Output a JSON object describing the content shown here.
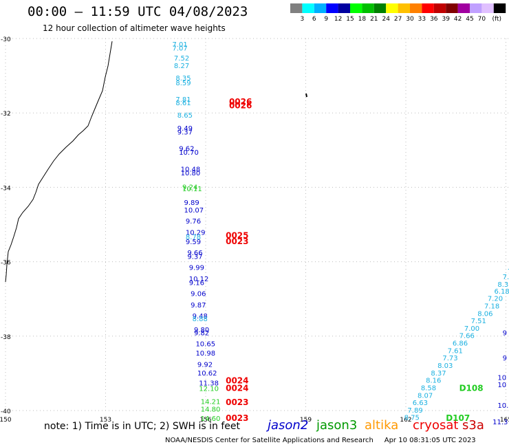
{
  "header": {
    "title": "00:00 – 11:59 UTC 04/08/2023",
    "subtitle": "12 hour collection of altimeter wave heights"
  },
  "colorbar": {
    "unit": "(ft)",
    "labels": [
      "3",
      "6",
      "9",
      "12",
      "15",
      "18",
      "21",
      "24",
      "27",
      "30",
      "33",
      "36",
      "39",
      "42",
      "45",
      "70"
    ],
    "colors": [
      "#808080",
      "#00ffff",
      "#00b0ff",
      "#0000ff",
      "#0000a0",
      "#00ff00",
      "#00c000",
      "#008000",
      "#ffff00",
      "#ffc000",
      "#ff8000",
      "#ff0000",
      "#c00000",
      "#800000",
      "#a000a0",
      "#c0a0ff",
      "#e0c0ff",
      "#000000"
    ]
  },
  "axes": {
    "lat_labels": [
      "-30",
      "-32",
      "-34",
      "-36",
      "-38",
      "-40"
    ],
    "lon_labels": [
      "150",
      "153",
      "156",
      "159",
      "162",
      "165"
    ]
  },
  "observations": [
    {
      "lon": 155.0,
      "lat": -30.15,
      "text": "7.01",
      "sat": "altika"
    },
    {
      "lon": 155.0,
      "lat": -30.25,
      "text": "7.07",
      "sat": "altika"
    },
    {
      "lon": 155.05,
      "lat": -30.52,
      "text": "7.52",
      "sat": "altika"
    },
    {
      "lon": 155.05,
      "lat": -30.72,
      "text": "8.27",
      "sat": "altika"
    },
    {
      "lon": 155.1,
      "lat": -31.05,
      "text": "8.35",
      "sat": "altika"
    },
    {
      "lon": 155.1,
      "lat": -31.18,
      "text": "8.59",
      "sat": "altika"
    },
    {
      "lon": 155.1,
      "lat": -31.63,
      "text": "7.81",
      "sat": "altika"
    },
    {
      "lon": 155.1,
      "lat": -31.72,
      "text": "8.61",
      "sat": "altika"
    },
    {
      "lon": 155.15,
      "lat": -32.05,
      "text": "8.65",
      "sat": "altika"
    },
    {
      "lon": 155.15,
      "lat": -32.4,
      "text": "9.49",
      "sat": "jason2"
    },
    {
      "lon": 155.15,
      "lat": -32.5,
      "text": "9.37",
      "sat": "jason2"
    },
    {
      "lon": 155.2,
      "lat": -32.95,
      "text": "9.62",
      "sat": "jason2"
    },
    {
      "lon": 155.2,
      "lat": -33.05,
      "text": "10.70",
      "sat": "jason2"
    },
    {
      "lon": 155.25,
      "lat": -33.5,
      "text": "10.48",
      "sat": "jason2"
    },
    {
      "lon": 155.25,
      "lat": -33.6,
      "text": "10.80",
      "sat": "jason2"
    },
    {
      "lon": 155.3,
      "lat": -33.98,
      "text": "9.24",
      "sat": "jason3"
    },
    {
      "lon": 155.3,
      "lat": -34.03,
      "text": "10.11",
      "sat": "jason3"
    },
    {
      "lon": 155.35,
      "lat": -34.4,
      "text": "9.89",
      "sat": "jason2"
    },
    {
      "lon": 155.35,
      "lat": -34.6,
      "text": "10.07",
      "sat": "jason2"
    },
    {
      "lon": 155.4,
      "lat": -34.9,
      "text": "9.76",
      "sat": "jason2"
    },
    {
      "lon": 155.4,
      "lat": -35.2,
      "text": "10.29",
      "sat": "jason2"
    },
    {
      "lon": 155.4,
      "lat": -35.32,
      "text": "8.78",
      "sat": "altika"
    },
    {
      "lon": 155.4,
      "lat": -35.45,
      "text": "9.59",
      "sat": "jason2"
    },
    {
      "lon": 155.45,
      "lat": -35.75,
      "text": "9.66",
      "sat": "jason2"
    },
    {
      "lon": 155.45,
      "lat": -35.85,
      "text": "9.37",
      "sat": "jason2"
    },
    {
      "lon": 155.5,
      "lat": -36.15,
      "text": "9.99",
      "sat": "jason2"
    },
    {
      "lon": 155.5,
      "lat": -36.45,
      "text": "10.12",
      "sat": "jason2"
    },
    {
      "lon": 155.5,
      "lat": -36.55,
      "text": "9.16",
      "sat": "jason2"
    },
    {
      "lon": 155.55,
      "lat": -36.85,
      "text": "9.06",
      "sat": "jason2"
    },
    {
      "lon": 155.55,
      "lat": -37.15,
      "text": "9.87",
      "sat": "jason2"
    },
    {
      "lon": 155.6,
      "lat": -37.45,
      "text": "9.48",
      "sat": "jason2"
    },
    {
      "lon": 155.6,
      "lat": -37.52,
      "text": "8.88",
      "sat": "altika"
    },
    {
      "lon": 155.65,
      "lat": -37.82,
      "text": "9.80",
      "sat": "jason2"
    },
    {
      "lon": 155.65,
      "lat": -37.9,
      "text": "9.82",
      "sat": "jason2"
    },
    {
      "lon": 155.7,
      "lat": -38.2,
      "text": "10.65",
      "sat": "jason2"
    },
    {
      "lon": 155.7,
      "lat": -38.45,
      "text": "10.98",
      "sat": "jason2"
    },
    {
      "lon": 155.75,
      "lat": -38.75,
      "text": "9.92",
      "sat": "jason2"
    },
    {
      "lon": 155.75,
      "lat": -38.98,
      "text": "10.62",
      "sat": "jason2"
    },
    {
      "lon": 155.8,
      "lat": -39.25,
      "text": "11.38",
      "sat": "jason2"
    },
    {
      "lon": 155.8,
      "lat": -39.4,
      "text": "12.10",
      "sat": "jason3"
    },
    {
      "lon": 155.85,
      "lat": -39.75,
      "text": "14.21",
      "sat": "jason3"
    },
    {
      "lon": 155.85,
      "lat": -39.95,
      "text": "14.80",
      "sat": "jason3"
    },
    {
      "lon": 155.85,
      "lat": -40.2,
      "text": "14.60",
      "sat": "jason3"
    },
    {
      "lon": 156.7,
      "lat": -31.7,
      "text": "0026",
      "sat": "cryosat"
    },
    {
      "lon": 156.7,
      "lat": -31.8,
      "text": "0026",
      "sat": "cryosat"
    },
    {
      "lon": 156.6,
      "lat": -35.3,
      "text": "0025",
      "sat": "cryosat"
    },
    {
      "lon": 156.6,
      "lat": -35.45,
      "text": "0023",
      "sat": "cryosat"
    },
    {
      "lon": 156.6,
      "lat": -39.2,
      "text": "0024",
      "sat": "cryosat"
    },
    {
      "lon": 156.6,
      "lat": -39.4,
      "text": "0024",
      "sat": "cryosat"
    },
    {
      "lon": 156.6,
      "lat": -39.78,
      "text": "0023",
      "sat": "cryosat"
    },
    {
      "lon": 156.6,
      "lat": -40.2,
      "text": "0023",
      "sat": "cryosat"
    },
    {
      "lon": 165.05,
      "lat": -36.25,
      "text": "7.",
      "sat": "altika"
    },
    {
      "lon": 164.9,
      "lat": -36.4,
      "text": "7.",
      "sat": "altika"
    },
    {
      "lon": 164.75,
      "lat": -36.6,
      "text": "8.3",
      "sat": "altika"
    },
    {
      "lon": 164.65,
      "lat": -36.78,
      "text": "6.18",
      "sat": "altika"
    },
    {
      "lon": 164.45,
      "lat": -36.98,
      "text": "7.20",
      "sat": "altika"
    },
    {
      "lon": 164.35,
      "lat": -37.18,
      "text": "7.18",
      "sat": "altika"
    },
    {
      "lon": 164.15,
      "lat": -37.38,
      "text": "8.06",
      "sat": "altika"
    },
    {
      "lon": 163.95,
      "lat": -37.58,
      "text": "7.51",
      "sat": "altika"
    },
    {
      "lon": 163.75,
      "lat": -37.78,
      "text": "7.00",
      "sat": "altika"
    },
    {
      "lon": 163.6,
      "lat": -37.98,
      "text": "7.66",
      "sat": "altika"
    },
    {
      "lon": 163.4,
      "lat": -38.18,
      "text": "6.86",
      "sat": "altika"
    },
    {
      "lon": 163.25,
      "lat": -38.38,
      "text": "7.61",
      "sat": "altika"
    },
    {
      "lon": 163.1,
      "lat": -38.58,
      "text": "7.73",
      "sat": "altika"
    },
    {
      "lon": 162.95,
      "lat": -38.78,
      "text": "8.03",
      "sat": "altika"
    },
    {
      "lon": 162.75,
      "lat": -38.98,
      "text": "8.37",
      "sat": "altika"
    },
    {
      "lon": 162.6,
      "lat": -39.18,
      "text": "8.16",
      "sat": "altika"
    },
    {
      "lon": 162.45,
      "lat": -39.38,
      "text": "8.58",
      "sat": "altika"
    },
    {
      "lon": 162.35,
      "lat": -39.58,
      "text": "8.07",
      "sat": "altika"
    },
    {
      "lon": 162.2,
      "lat": -39.78,
      "text": "6.63",
      "sat": "altika"
    },
    {
      "lon": 162.05,
      "lat": -39.98,
      "text": "7.89",
      "sat": "altika"
    },
    {
      "lon": 161.95,
      "lat": -40.18,
      "text": "8.75",
      "sat": "altika"
    },
    {
      "lon": 164.9,
      "lat": -37.9,
      "text": "9",
      "sat": "jason2"
    },
    {
      "lon": 164.9,
      "lat": -38.58,
      "text": "9",
      "sat": "jason2"
    },
    {
      "lon": 164.75,
      "lat": -39.1,
      "text": "10",
      "sat": "jason2"
    },
    {
      "lon": 164.75,
      "lat": -39.3,
      "text": "10",
      "sat": "jason2"
    },
    {
      "lon": 164.75,
      "lat": -39.85,
      "text": "10.",
      "sat": "jason2"
    },
    {
      "lon": 164.6,
      "lat": -40.3,
      "text": "11.3",
      "sat": "jason2"
    },
    {
      "lon": 163.6,
      "lat": -39.4,
      "text": "D108",
      "sat": "jason3"
    },
    {
      "lon": 163.2,
      "lat": -40.2,
      "text": "D107",
      "sat": "jason3"
    }
  ],
  "legend_sats": {
    "jason2": "jason2",
    "jason3": "jason3",
    "altika": "altika",
    "cryosat": "cryosat",
    "s3a": "s3a"
  },
  "sat_colors": {
    "jason2": "#0000cc",
    "jason3": "#22cc22",
    "altika": "#1ab0e0",
    "cryosat": "#ee0000"
  },
  "footer": {
    "note": "note: 1) Time is in UTC; 2) SWH is in feet",
    "credit": "NOAA/NESDIS Center for Satellite Applications and Research     Apr 10 08:31:05 UTC 2023"
  }
}
